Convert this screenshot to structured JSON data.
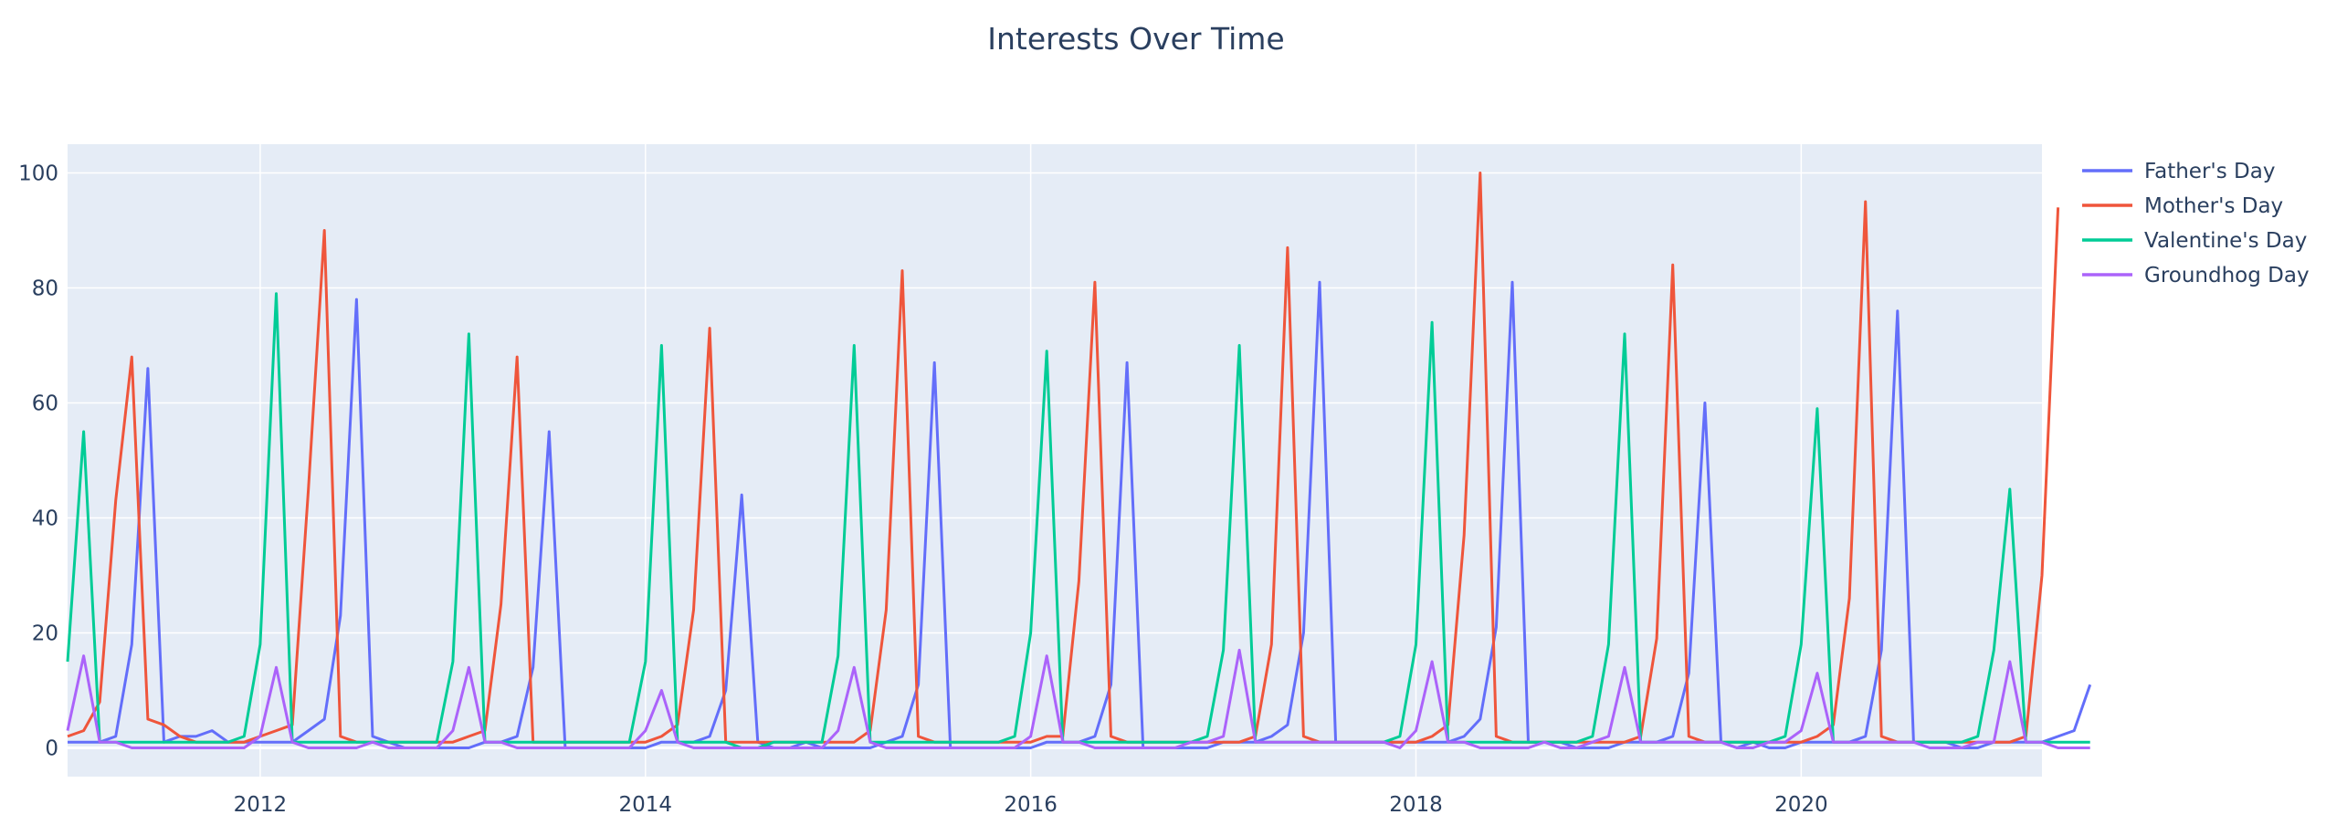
{
  "chart_data": {
    "type": "line",
    "title": "Interests Over Time",
    "xlabel": "",
    "ylabel": "",
    "xlim": [
      "2011-01",
      "2021-04"
    ],
    "ylim": [
      -5,
      105
    ],
    "x_ticks": [
      "2012",
      "2014",
      "2016",
      "2018",
      "2020"
    ],
    "y_ticks": [
      0,
      20,
      40,
      60,
      80,
      100
    ],
    "grid": true,
    "legend_position": "top-right",
    "x_start": "2011-01",
    "x_frequency": "monthly",
    "series": [
      {
        "name": "Father's Day",
        "color": "#636efa",
        "values": [
          1,
          1,
          1,
          2,
          18,
          66,
          1,
          2,
          2,
          3,
          1,
          1,
          1,
          1,
          1,
          3,
          5,
          23,
          78,
          2,
          1,
          0,
          0,
          0,
          0,
          0,
          1,
          1,
          2,
          14,
          55,
          0,
          0,
          0,
          0,
          0,
          0,
          1,
          1,
          1,
          2,
          10,
          44,
          1,
          0,
          0,
          1,
          0,
          0,
          0,
          0,
          1,
          2,
          11,
          67,
          0,
          0,
          0,
          0,
          0,
          0,
          1,
          1,
          1,
          2,
          11,
          67,
          0,
          0,
          0,
          0,
          0,
          1,
          1,
          1,
          2,
          4,
          20,
          81,
          1,
          1,
          1,
          1,
          1,
          1,
          1,
          1,
          2,
          5,
          21,
          81,
          1,
          1,
          1,
          0,
          0,
          0,
          1,
          1,
          1,
          2,
          13,
          60,
          1,
          0,
          1,
          0,
          0,
          1,
          1,
          1,
          1,
          2,
          17,
          76,
          1,
          1,
          1,
          0,
          0,
          1,
          1,
          1,
          1,
          2,
          3,
          11
        ]
      },
      {
        "name": "Mother's Day",
        "color": "#ef553b",
        "values": [
          2,
          3,
          8,
          43,
          68,
          5,
          4,
          2,
          1,
          1,
          1,
          1,
          2,
          3,
          4,
          45,
          90,
          2,
          1,
          1,
          1,
          1,
          1,
          1,
          1,
          2,
          3,
          25,
          68,
          1,
          1,
          1,
          1,
          1,
          1,
          1,
          1,
          2,
          4,
          24,
          73,
          1,
          1,
          1,
          1,
          1,
          1,
          1,
          1,
          1,
          3,
          24,
          83,
          2,
          1,
          1,
          1,
          1,
          1,
          1,
          1,
          2,
          2,
          29,
          81,
          2,
          1,
          1,
          1,
          1,
          1,
          1,
          1,
          1,
          2,
          18,
          87,
          2,
          1,
          1,
          1,
          1,
          1,
          1,
          1,
          2,
          4,
          37,
          100,
          2,
          1,
          1,
          1,
          1,
          1,
          1,
          1,
          1,
          2,
          19,
          84,
          2,
          1,
          1,
          1,
          1,
          1,
          1,
          1,
          2,
          4,
          26,
          95,
          2,
          1,
          1,
          1,
          1,
          1,
          1,
          1,
          1,
          2,
          30,
          94
        ]
      },
      {
        "name": "Valentine's Day",
        "color": "#00cc96",
        "values": [
          15,
          55,
          1,
          1,
          1,
          1,
          1,
          1,
          1,
          1,
          1,
          2,
          18,
          79,
          1,
          1,
          1,
          1,
          1,
          1,
          1,
          1,
          1,
          1,
          15,
          72,
          1,
          1,
          1,
          1,
          1,
          1,
          1,
          1,
          1,
          1,
          15,
          70,
          1,
          1,
          1,
          1,
          0,
          0,
          1,
          1,
          1,
          1,
          16,
          70,
          1,
          1,
          1,
          1,
          1,
          1,
          1,
          1,
          1,
          2,
          20,
          69,
          1,
          1,
          1,
          1,
          1,
          1,
          1,
          1,
          1,
          2,
          17,
          70,
          1,
          1,
          1,
          1,
          1,
          1,
          1,
          1,
          1,
          2,
          18,
          74,
          1,
          1,
          1,
          1,
          1,
          1,
          1,
          1,
          1,
          2,
          18,
          72,
          1,
          1,
          1,
          1,
          1,
          1,
          1,
          1,
          1,
          2,
          18,
          59,
          1,
          1,
          1,
          1,
          1,
          1,
          1,
          1,
          1,
          2,
          17,
          45,
          1,
          1,
          1,
          1,
          1
        ]
      },
      {
        "name": "Groundhog Day",
        "color": "#ab63fa",
        "values": [
          3,
          16,
          1,
          1,
          0,
          0,
          0,
          0,
          0,
          0,
          0,
          0,
          2,
          14,
          1,
          0,
          0,
          0,
          0,
          1,
          0,
          0,
          0,
          0,
          3,
          14,
          1,
          1,
          0,
          0,
          0,
          0,
          0,
          0,
          0,
          0,
          3,
          10,
          1,
          0,
          0,
          0,
          0,
          0,
          0,
          0,
          0,
          0,
          3,
          14,
          1,
          0,
          0,
          0,
          0,
          0,
          0,
          0,
          0,
          0,
          2,
          16,
          1,
          1,
          0,
          0,
          0,
          0,
          0,
          0,
          1,
          1,
          2,
          17,
          1,
          1,
          1,
          1,
          1,
          1,
          1,
          1,
          1,
          0,
          3,
          15,
          1,
          1,
          0,
          0,
          0,
          0,
          1,
          0,
          0,
          1,
          2,
          14,
          1,
          1,
          1,
          1,
          1,
          1,
          0,
          0,
          1,
          1,
          3,
          13,
          1,
          1,
          1,
          1,
          1,
          1,
          0,
          0,
          0,
          1,
          1,
          15,
          1,
          1,
          0,
          0,
          0
        ]
      }
    ]
  }
}
